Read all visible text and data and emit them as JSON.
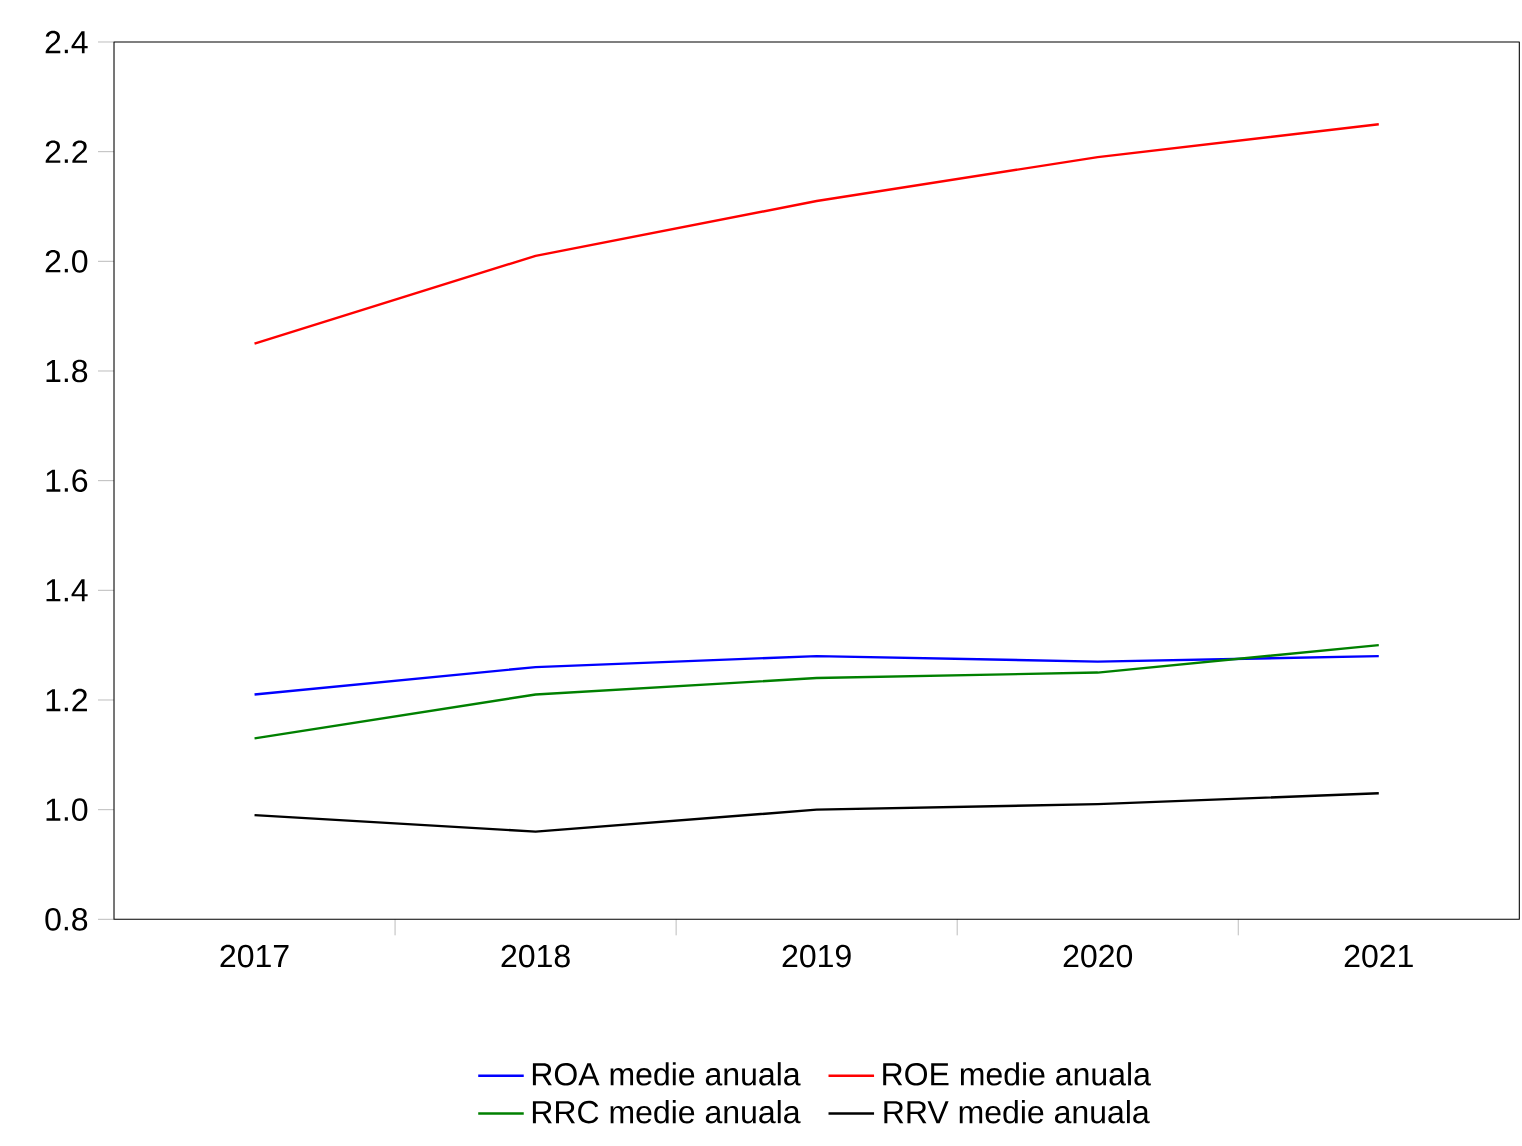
{
  "chart_data": {
    "type": "line",
    "categories": [
      "2017",
      "2018",
      "2019",
      "2020",
      "2021"
    ],
    "ylim": [
      0.8,
      2.4
    ],
    "yticks": [
      0.8,
      {
        "value": 1,
        "label": "1.0"
      },
      1.2,
      1.4,
      1.6,
      1.8,
      {
        "value": 2,
        "label": "2.0"
      },
      2.2,
      2.4
    ],
    "legend": "bottom",
    "grid": false,
    "marker": "none",
    "line_style": "solid",
    "series": [
      {
        "name": "ROA medie anuala",
        "color": "#0000ff",
        "values": [
          1.21,
          1.26,
          1.28,
          1.27,
          1.28
        ]
      },
      {
        "name": "ROE medie anuala",
        "color": "#ff0000",
        "values": [
          1.85,
          2.01,
          2.11,
          2.19,
          2.25
        ]
      },
      {
        "name": "RRC medie anuala",
        "color": "#008000",
        "values": [
          1.13,
          1.21,
          1.24,
          1.25,
          1.3
        ]
      },
      {
        "name": "RRV medie anuala",
        "color": "#000000",
        "values": [
          0.99,
          0.96,
          1.0,
          1.01,
          1.03
        ]
      }
    ]
  }
}
